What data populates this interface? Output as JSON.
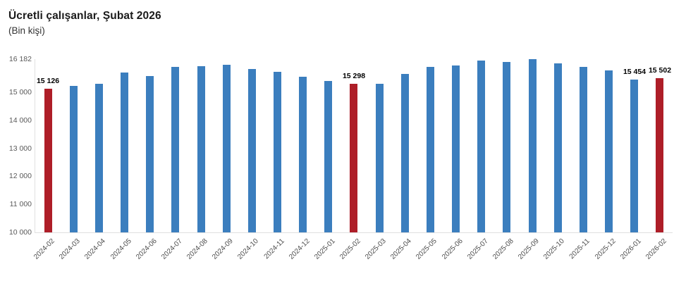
{
  "header": {
    "title": "Ücretli çalışanlar, Şubat 2026",
    "subtitle": "(Bin kişi)"
  },
  "colors": {
    "bar_default": "#3b7ebe",
    "bar_highlight": "#ae1e28",
    "axis_line": "#e0e0e0",
    "tick_text": "#595959",
    "value_label_text": "#000000",
    "background": "#ffffff"
  },
  "chart_data": {
    "type": "bar",
    "title": "Ücretli çalışanlar, Şubat 2026",
    "subtitle": "(Bin kişi)",
    "xlabel": "",
    "ylabel": "Bin kişi",
    "ylim": [
      10000,
      16182
    ],
    "grid": false,
    "legend": null,
    "yticks": [
      {
        "value": 10000,
        "label": "10 000"
      },
      {
        "value": 11000,
        "label": "11 000"
      },
      {
        "value": 12000,
        "label": "12 000"
      },
      {
        "value": 13000,
        "label": "13 000"
      },
      {
        "value": 14000,
        "label": "14 000"
      },
      {
        "value": 15000,
        "label": "15 000"
      },
      {
        "value": 16182,
        "label": "16 182"
      }
    ],
    "categories": [
      "2024-02",
      "2024-03",
      "2024-04",
      "2024-05",
      "2024-06",
      "2024-07",
      "2024-08",
      "2024-09",
      "2024-10",
      "2024-11",
      "2024-12",
      "2025-01",
      "2025-02",
      "2025-03",
      "2025-04",
      "2025-05",
      "2025-06",
      "2025-07",
      "2025-08",
      "2025-09",
      "2025-10",
      "2025-11",
      "2025-12",
      "2026-01",
      "2026-02"
    ],
    "values": [
      15126,
      15230,
      15290,
      15700,
      15590,
      15905,
      15920,
      15980,
      15840,
      15730,
      15565,
      15410,
      15298,
      15310,
      15660,
      15895,
      15945,
      16120,
      16070,
      16182,
      16025,
      15895,
      15770,
      15454,
      15502
    ],
    "highlighted_categories": [
      "2024-02",
      "2025-02",
      "2026-02"
    ],
    "value_labels": [
      {
        "category": "2024-02",
        "label": "15 126"
      },
      {
        "category": "2025-02",
        "label": "15 298"
      },
      {
        "category": "2026-01",
        "label": "15 454"
      },
      {
        "category": "2026-02",
        "label": "15 502"
      }
    ]
  }
}
